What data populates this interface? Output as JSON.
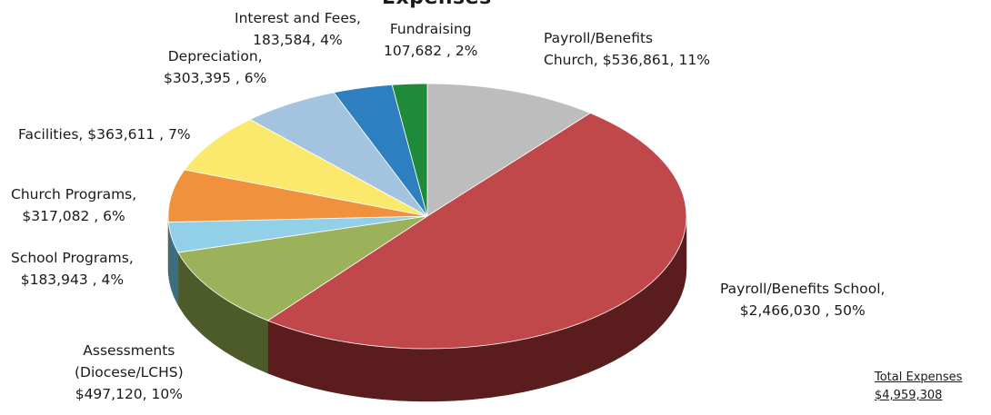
{
  "chart_data": {
    "type": "pie",
    "title": "Expenses",
    "unit": "$",
    "slices": [
      {
        "label": "Payroll/Benefits Church",
        "value": 536861,
        "percent": 11,
        "color": "#bdbdbd",
        "side": "#6b6b6b",
        "text": [
          "Payroll/Benefits",
          "Church,  $536,861, 11%"
        ]
      },
      {
        "label": "Payroll/Benefits School",
        "value": 2466030,
        "percent": 50,
        "color": "#c0474a",
        "side": "#5a1c1c",
        "text": [
          "Payroll/Benefits School,",
          "$2,466,030 , 50%"
        ]
      },
      {
        "label": "Assessments (Diocese/LCHS)",
        "value": 497120,
        "percent": 10,
        "color": "#9bb25a",
        "side": "#4d5a2a",
        "text": [
          "Assessments",
          "(Diocese/LCHS)",
          "$497,120, 10%"
        ]
      },
      {
        "label": "School Programs",
        "value": 183943,
        "percent": 4,
        "color": "#92d0e8",
        "side": "#3d6e80",
        "text": [
          "School Programs,",
          "$183,943 , 4%"
        ]
      },
      {
        "label": "Church Programs",
        "value": 317082,
        "percent": 6,
        "color": "#f0913e",
        "side": "#8a4c18",
        "text": [
          "Church Programs,",
          "$317,082 , 6%"
        ]
      },
      {
        "label": "Facilities",
        "value": 363611,
        "percent": 7,
        "color": "#fbe96e",
        "side": "#8c7f2e",
        "text": [
          "Facilities, $363,611 , 7%"
        ]
      },
      {
        "label": "Depreciation",
        "value": 303395,
        "percent": 6,
        "color": "#a4c3df",
        "side": "#506a80",
        "text": [
          "Depreciation,",
          "$303,395 , 6%"
        ]
      },
      {
        "label": "Interest and Fees",
        "value": 183584,
        "percent": 4,
        "color": "#2e7fc0",
        "side": "#163e5e",
        "text": [
          "Interest and Fees,",
          "183,584, 4%"
        ]
      },
      {
        "label": "Fundraising",
        "value": 107682,
        "percent": 2,
        "color": "#1f8a3a",
        "side": "#0f451d",
        "text": [
          "Fundraising",
          "107,682 , 2%"
        ]
      }
    ],
    "total": {
      "label": "Total Expenses",
      "value": "$4,959,308"
    }
  }
}
